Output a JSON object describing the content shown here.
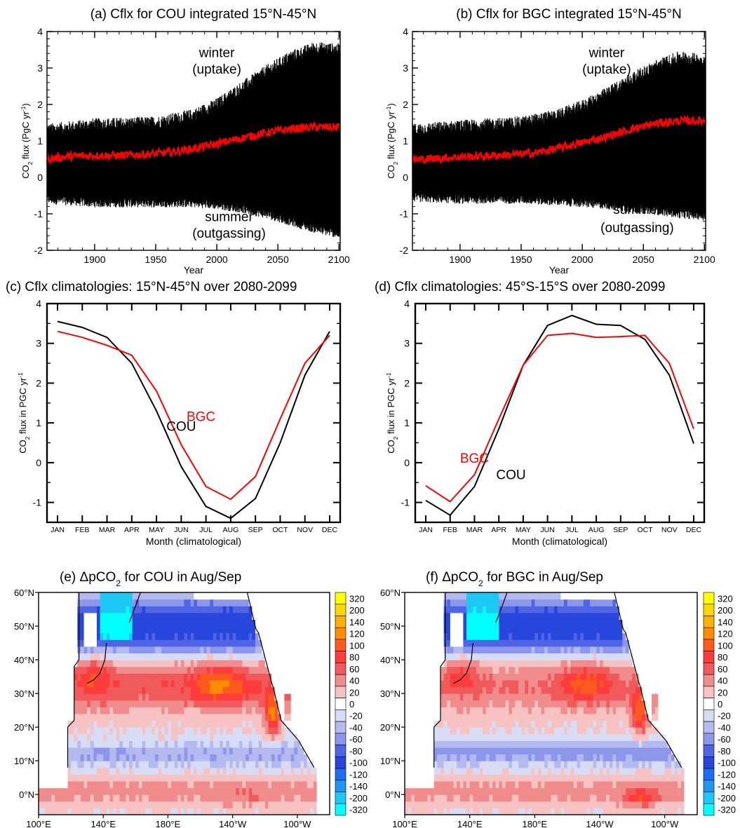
{
  "chart_data": [
    {
      "type": "line",
      "panel": "a",
      "title": "(a) Cflx for COU integrated 15°N-45°N",
      "xlabel": "Year",
      "ylabel": "CO2 flux (PgC yr-1)",
      "ylabel_parts": [
        "CO",
        "2",
        " flux (PgC yr",
        "-1",
        ")"
      ],
      "xlim": [
        1861,
        2101
      ],
      "ylim": [
        -2,
        4
      ],
      "xticks": [
        1900,
        1950,
        2000,
        2050,
        2100
      ],
      "yticks": [
        -2,
        -1,
        0,
        1,
        2,
        3,
        4
      ],
      "annotations": [
        {
          "text": "winter",
          "x": 2000,
          "y": 3.3
        },
        {
          "text": "(uptake)",
          "x": 2000,
          "y": 2.85
        },
        {
          "text": "summer",
          "x": 2010,
          "y": -1.2
        },
        {
          "text": "(outgassing)",
          "x": 2010,
          "y": -1.65
        }
      ],
      "series": [
        {
          "color": "#000000",
          "envelope_x": [
            1861,
            1900,
            1950,
            1980,
            2000,
            2020,
            2040,
            2060,
            2080,
            2100
          ],
          "upper": [
            1.3,
            1.45,
            1.5,
            1.7,
            2.0,
            2.45,
            2.9,
            3.3,
            3.55,
            3.5
          ],
          "lower": [
            -0.6,
            -0.7,
            -0.7,
            -0.7,
            -0.75,
            -0.85,
            -1.0,
            -1.2,
            -1.4,
            -1.55
          ]
        },
        {
          "color": "#ff0000",
          "x": [
            1861,
            1880,
            1900,
            1920,
            1940,
            1960,
            1980,
            2000,
            2020,
            2040,
            2060,
            2080,
            2100
          ],
          "values": [
            0.5,
            0.58,
            0.6,
            0.6,
            0.63,
            0.68,
            0.78,
            0.92,
            1.07,
            1.22,
            1.33,
            1.38,
            1.38
          ]
        }
      ]
    },
    {
      "type": "line",
      "panel": "b",
      "title": "(b) Cflx for BGC integrated 15°N-45°N",
      "xlabel": "Year",
      "ylabel": "CO2 flux (PgC yr-1)",
      "ylabel_parts": [
        "CO",
        "2",
        " flux (PgC yr",
        "-1",
        ")"
      ],
      "xlim": [
        1861,
        2101
      ],
      "ylim": [
        -2,
        4
      ],
      "xticks": [
        1900,
        1950,
        2000,
        2050,
        2100
      ],
      "yticks": [
        -2,
        -1,
        0,
        1,
        2,
        3,
        4
      ],
      "annotations": [
        {
          "text": "winter",
          "x": 2020,
          "y": 3.3
        },
        {
          "text": "(uptake)",
          "x": 2020,
          "y": 2.85
        },
        {
          "text": "summer",
          "x": 2045,
          "y": -1.0
        },
        {
          "text": "(outgassing)",
          "x": 2045,
          "y": -1.5
        }
      ],
      "series": [
        {
          "color": "#000000",
          "envelope_x": [
            1861,
            1900,
            1950,
            1980,
            2000,
            2020,
            2040,
            2060,
            2080,
            2100
          ],
          "upper": [
            1.3,
            1.4,
            1.5,
            1.7,
            1.95,
            2.3,
            2.7,
            3.05,
            3.3,
            3.2
          ],
          "lower": [
            -0.55,
            -0.6,
            -0.6,
            -0.65,
            -0.7,
            -0.75,
            -0.85,
            -0.9,
            -1.0,
            -1.05
          ]
        },
        {
          "color": "#ff0000",
          "x": [
            1861,
            1880,
            1900,
            1920,
            1940,
            1960,
            1980,
            2000,
            2020,
            2040,
            2060,
            2080,
            2100
          ],
          "values": [
            0.48,
            0.52,
            0.56,
            0.58,
            0.62,
            0.66,
            0.8,
            0.95,
            1.12,
            1.32,
            1.48,
            1.55,
            1.55
          ]
        }
      ]
    },
    {
      "type": "line",
      "panel": "c",
      "title": "(c) Cflx climatologies: 15°N-45°N over 2080-2099",
      "xlabel": "Month (climatological)",
      "ylabel": "CO2 flux in PGC yr-1",
      "ylabel_parts": [
        "CO",
        "2",
        " flux in PGC yr",
        "-1",
        ""
      ],
      "categories": [
        "JAN",
        "FEB",
        "MAR",
        "APR",
        "MAY",
        "JUN",
        "JUL",
        "AUG",
        "SEP",
        "OCT",
        "NOV",
        "DEC"
      ],
      "ylim": [
        -1.5,
        4
      ],
      "yticks": [
        -1,
        0,
        1,
        2,
        3,
        4
      ],
      "series": [
        {
          "name": "COU",
          "color": "#000000",
          "values": [
            3.55,
            3.4,
            3.15,
            2.5,
            1.3,
            -0.1,
            -1.1,
            -1.4,
            -0.9,
            0.5,
            2.2,
            3.3
          ]
        },
        {
          "name": "BGC",
          "color": "#ff0000",
          "values": [
            3.3,
            3.15,
            2.95,
            2.7,
            1.8,
            0.45,
            -0.6,
            -0.92,
            -0.35,
            1.1,
            2.5,
            3.2
          ]
        }
      ],
      "labels": [
        {
          "text": "COU",
          "color": "#000000",
          "month": 5.0,
          "y": 0.8
        },
        {
          "text": "BGC",
          "color": "#ff0000",
          "month": 5.8,
          "y": 1.05
        }
      ]
    },
    {
      "type": "line",
      "panel": "d",
      "title": "(d) Cflx climatologies: 45°S-15°S over 2080-2099",
      "xlabel": "Month (climatological)",
      "ylabel": "CO2 flux in PGC yr-1",
      "ylabel_parts": [
        "CO",
        "2",
        " flux in PGC yr",
        "-1",
        ""
      ],
      "categories": [
        "JAN",
        "FEB",
        "MAR",
        "APR",
        "MAY",
        "JUN",
        "JUL",
        "AUG",
        "SEP",
        "OCT",
        "NOV",
        "DEC"
      ],
      "ylim": [
        -1.5,
        4
      ],
      "yticks": [
        -1,
        0,
        1,
        2,
        3,
        4
      ],
      "series": [
        {
          "name": "COU",
          "color": "#000000",
          "values": [
            -0.95,
            -1.32,
            -0.6,
            0.85,
            2.45,
            3.45,
            3.7,
            3.48,
            3.45,
            3.1,
            2.2,
            0.48
          ]
        },
        {
          "name": "BGC",
          "color": "#ff0000",
          "values": [
            -0.58,
            -0.98,
            -0.3,
            1.1,
            2.45,
            3.2,
            3.25,
            3.15,
            3.17,
            3.2,
            2.5,
            0.85
          ]
        }
      ],
      "labels": [
        {
          "text": "BGC",
          "color": "#ff0000",
          "month": 2.0,
          "y": 0.0
        },
        {
          "text": "COU",
          "color": "#000000",
          "month": 3.5,
          "y": -0.42
        }
      ]
    },
    {
      "type": "heatmap",
      "panel": "e",
      "title": "(e) ΔpCO2 for COU in Aug/Sep",
      "title_parts": [
        "(e) ΔpCO",
        "2",
        " for COU in Aug/Sep"
      ],
      "xticks": [
        "100°E",
        "140°E",
        "180°E",
        "140°W",
        "100°W"
      ],
      "yticks": [
        "60°N",
        "50°N",
        "40°N",
        "30°N",
        "20°N",
        "10°N",
        "0°N"
      ],
      "lon_range": [
        100,
        280
      ],
      "lat_range": [
        -6,
        60
      ],
      "colorbar_labels": [
        "320",
        "200",
        "140",
        "120",
        "100",
        "80",
        "60",
        "40",
        "20",
        "0",
        "-20",
        "-40",
        "-60",
        "-80",
        "-100",
        "-120",
        "-140",
        "-200",
        "-320"
      ]
    },
    {
      "type": "heatmap",
      "panel": "f",
      "title": "(f) ΔpCO2 for BGC in Aug/Sep",
      "title_parts": [
        "(f) ΔpCO",
        "2",
        " for BGC in Aug/Sep"
      ],
      "xticks": [
        "100°E",
        "140°E",
        "180°E",
        "140°W",
        "100°W"
      ],
      "yticks": [
        "60°N",
        "50°N",
        "40°N",
        "30°N",
        "20°N",
        "10°N",
        "0°N"
      ],
      "lon_range": [
        100,
        280
      ],
      "lat_range": [
        -6,
        60
      ],
      "colorbar_labels": [
        "320",
        "200",
        "140",
        "120",
        "100",
        "80",
        "60",
        "40",
        "20",
        "0",
        "-20",
        "-40",
        "-60",
        "-80",
        "-100",
        "-120",
        "-140",
        "-200",
        "-320"
      ]
    }
  ],
  "colors": {
    "colorbar": [
      "#ffff00",
      "#ffd700",
      "#ffb000",
      "#ff8c00",
      "#ff5a1e",
      "#ff3c3c",
      "#f05a5a",
      "#f08c8c",
      "#f7c2c2",
      "#ffffff",
      "#d7dcf5",
      "#b4b9f0",
      "#8c96eb",
      "#5064e6",
      "#2846dc",
      "#1e6ef0",
      "#1e96f5",
      "#1ec8f5",
      "#00ffff"
    ]
  }
}
